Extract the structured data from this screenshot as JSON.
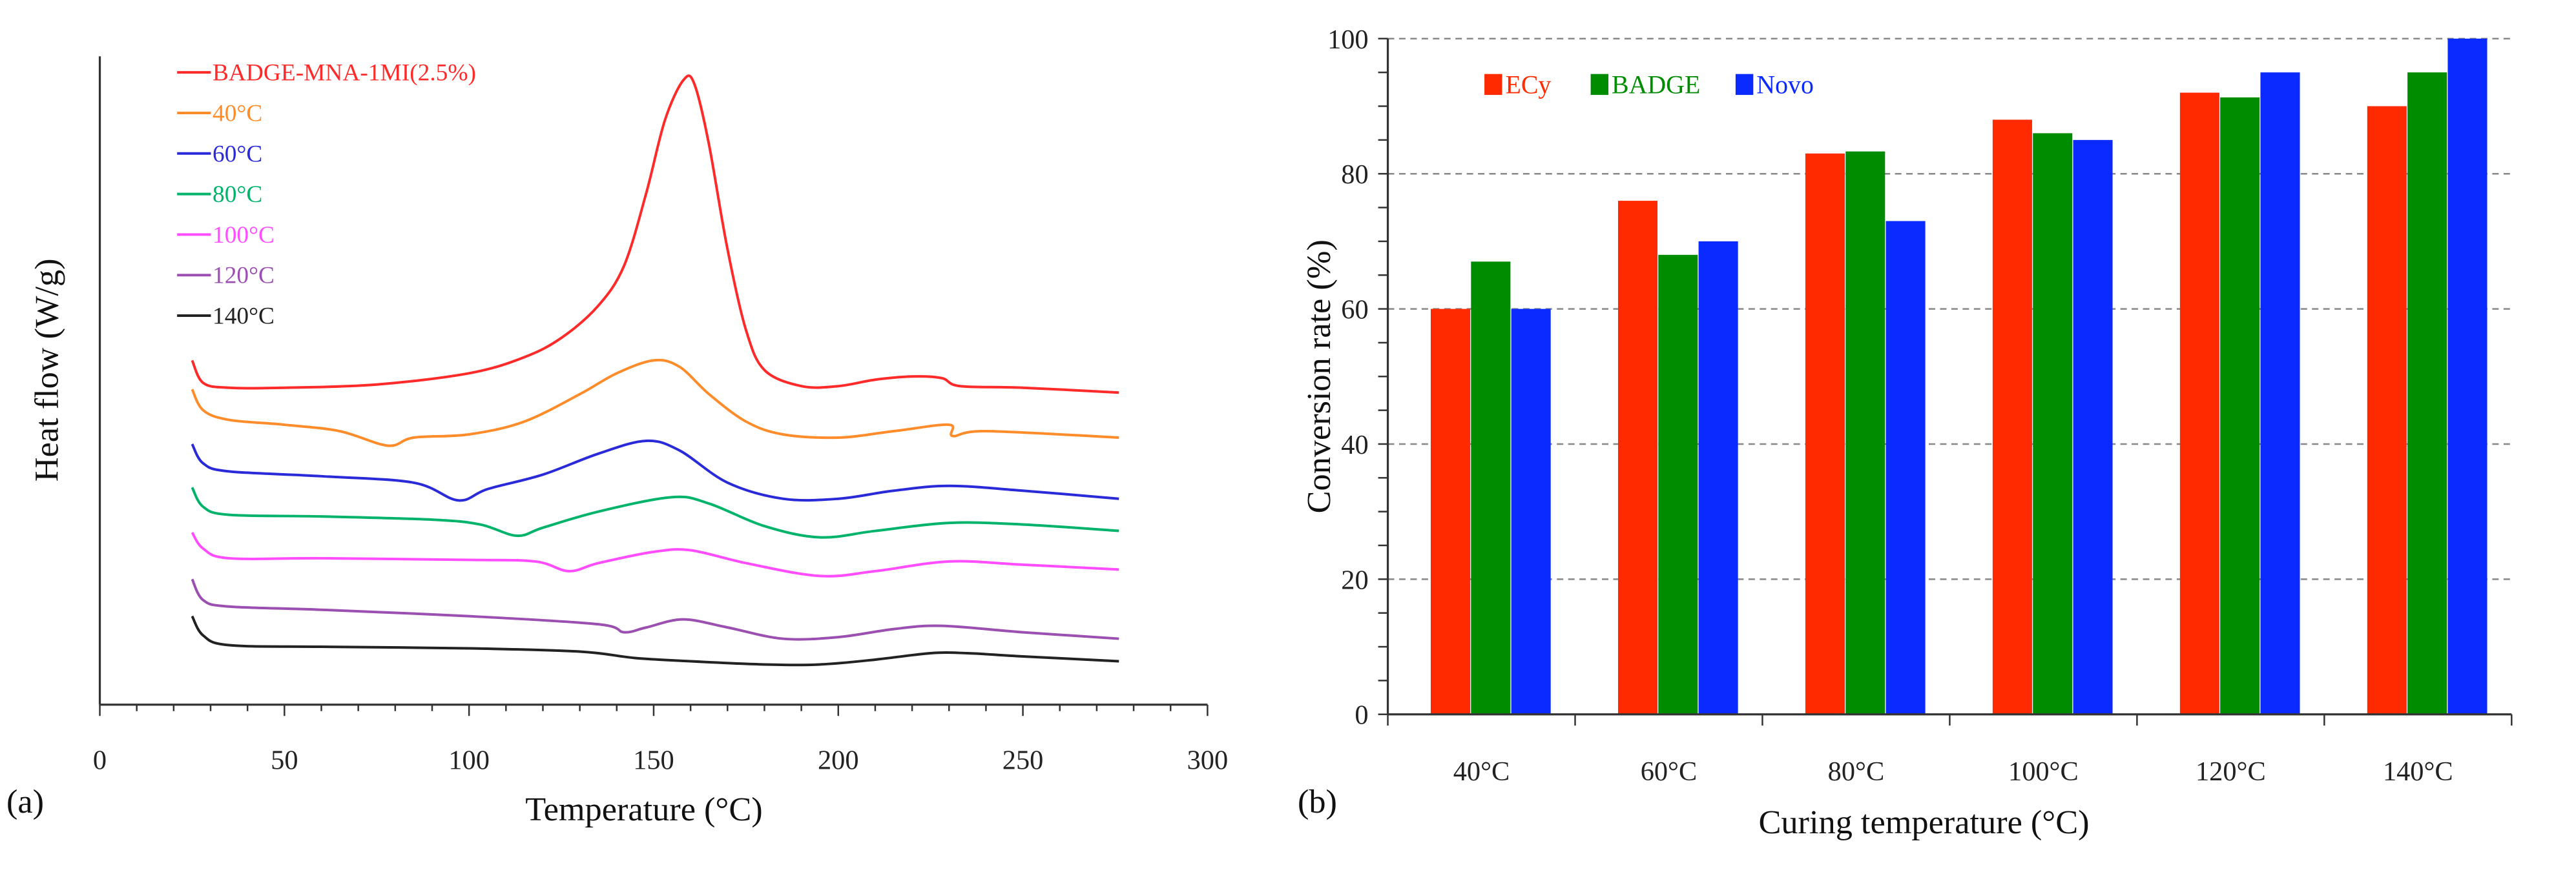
{
  "chart_data": [
    {
      "type": "line",
      "panel_label": "(a)",
      "xlabel": "Temperature (°C)",
      "ylabel": "Heat flow (W/g)",
      "xlim": [
        0,
        300
      ],
      "xticks": [
        0,
        50,
        100,
        150,
        200,
        250,
        300
      ],
      "ylim_au": [
        0,
        403
      ],
      "y_units": "arbitrary (curves offset vertically, no y tick labels)",
      "legend_placement": "top-left",
      "series": [
        {
          "name": "BADGE-MNA-1MI(2.5%)",
          "color": "#ff2a2a",
          "x": [
            25,
            28,
            35,
            50,
            75,
            100,
            115,
            125,
            135,
            142,
            148,
            153,
            158,
            161,
            165,
            170,
            175,
            180,
            190,
            200,
            210,
            220,
            228,
            233,
            250,
            276
          ],
          "y": [
            214,
            200,
            197,
            197,
            199,
            206,
            216,
            228,
            248,
            273,
            318,
            363,
            388,
            386,
            348,
            283,
            233,
            208,
            198,
            198,
            202,
            204,
            203,
            198,
            197,
            194
          ]
        },
        {
          "name": "40°C",
          "color": "#ff8c2a",
          "x": [
            25,
            28,
            35,
            50,
            65,
            78,
            85,
            100,
            115,
            130,
            140,
            150,
            157,
            165,
            175,
            185,
            200,
            215,
            230,
            231,
            240,
            276
          ],
          "y": [
            196,
            183,
            177,
            174,
            170,
            161,
            166,
            168,
            176,
            193,
            206,
            214,
            210,
            193,
            176,
            168,
            166,
            170,
            174,
            167,
            170,
            166
          ]
        },
        {
          "name": "60°C",
          "color": "#2a2ad8",
          "x": [
            25,
            28,
            35,
            60,
            85,
            97,
            105,
            120,
            135,
            148,
            157,
            170,
            185,
            200,
            215,
            230,
            250,
            276
          ],
          "y": [
            162,
            150,
            145,
            142,
            138,
            127,
            134,
            143,
            156,
            164,
            158,
            138,
            128,
            128,
            133,
            136,
            133,
            128
          ]
        },
        {
          "name": "80°C",
          "color": "#00b36b",
          "x": [
            25,
            28,
            35,
            60,
            90,
            103,
            113,
            120,
            135,
            155,
            165,
            180,
            195,
            210,
            230,
            250,
            276
          ],
          "y": [
            135,
            123,
            118,
            117,
            115,
            112,
            105,
            110,
            120,
            129,
            125,
            111,
            104,
            108,
            113,
            112,
            108
          ]
        },
        {
          "name": "100°C",
          "color": "#ff4dff",
          "x": [
            25,
            28,
            35,
            60,
            100,
            118,
            127,
            135,
            150,
            160,
            175,
            195,
            210,
            230,
            250,
            276
          ],
          "y": [
            107,
            97,
            91,
            91,
            90,
            89,
            83,
            88,
            95,
            96,
            88,
            80,
            83,
            89,
            87,
            84
          ]
        },
        {
          "name": "120°C",
          "color": "#9b4fb0",
          "x": [
            25,
            28,
            35,
            60,
            100,
            135,
            142,
            148,
            158,
            170,
            185,
            200,
            215,
            228,
            250,
            276
          ],
          "y": [
            78,
            65,
            61,
            59,
            55,
            50,
            45,
            48,
            53,
            48,
            41,
            42,
            47,
            49,
            45,
            41
          ]
        },
        {
          "name": "140°C",
          "color": "#222222",
          "x": [
            25,
            28,
            35,
            60,
            100,
            130,
            145,
            160,
            180,
            195,
            210,
            225,
            235,
            250,
            276
          ],
          "y": [
            55,
            43,
            37,
            36,
            35,
            33,
            29,
            27,
            25,
            25,
            28,
            32,
            32,
            30,
            27
          ]
        }
      ]
    },
    {
      "type": "bar",
      "panel_label": "(b)",
      "xlabel": "Curing temperature (°C)",
      "ylabel": "Conversion rate (%)",
      "ylim": [
        0,
        100
      ],
      "yticks": [
        0,
        20,
        40,
        60,
        80,
        100
      ],
      "grid": "dashed horizontal",
      "legend_placement": "top-left",
      "categories": [
        "40°C",
        "60°C",
        "80°C",
        "100°C",
        "120°C",
        "140°C"
      ],
      "series": [
        {
          "name": "ECy",
          "color": "#ff2a00",
          "values": [
            60,
            76,
            83,
            88,
            92,
            90
          ]
        },
        {
          "name": "BADGE",
          "color": "#008c00",
          "values": [
            67,
            68,
            83.3,
            86,
            91.3,
            95
          ]
        },
        {
          "name": "Novo",
          "color": "#0a2aff",
          "values": [
            60,
            70,
            73,
            85,
            95,
            100
          ]
        }
      ]
    }
  ]
}
